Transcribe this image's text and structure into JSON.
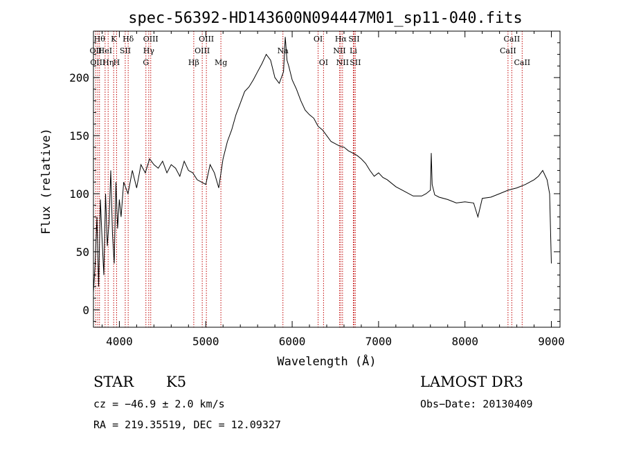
{
  "chart_data": {
    "type": "line",
    "title": "spec-56392-HD143600N094447M01_sp11-040.fits",
    "xlabel": "Wavelength (Å)",
    "ylabel": "Flux (relative)",
    "xlim": [
      3700,
      9100
    ],
    "ylim": [
      -15,
      240
    ],
    "x_ticks": [
      4000,
      5000,
      6000,
      7000,
      8000,
      9000
    ],
    "y_ticks": [
      0,
      50,
      100,
      150,
      200
    ],
    "series": [
      {
        "x": [
          3700,
          3720,
          3740,
          3760,
          3780,
          3800,
          3820,
          3840,
          3860,
          3880,
          3900,
          3920,
          3940,
          3960,
          3980,
          4000,
          4020,
          4050,
          4100,
          4150,
          4200,
          4250,
          4300,
          4350,
          4400,
          4450,
          4500,
          4550,
          4600,
          4650,
          4700,
          4750,
          4800,
          4850,
          4900,
          4950,
          5000,
          5050,
          5100,
          5150,
          5200,
          5250,
          5300,
          5350,
          5400,
          5450,
          5500,
          5550,
          5600,
          5650,
          5700,
          5750,
          5800,
          5850,
          5900,
          5920,
          5940,
          5960,
          6000,
          6050,
          6100,
          6150,
          6200,
          6250,
          6300,
          6350,
          6400,
          6450,
          6500,
          6550,
          6600,
          6650,
          6700,
          6750,
          6800,
          6850,
          6900,
          6950,
          7000,
          7050,
          7100,
          7200,
          7300,
          7400,
          7500,
          7550,
          7600,
          7610,
          7620,
          7650,
          7700,
          7800,
          7900,
          8000,
          8100,
          8150,
          8200,
          8300,
          8400,
          8500,
          8600,
          8700,
          8750,
          8800,
          8850,
          8900,
          8950,
          8980,
          9000
        ],
        "y": [
          15,
          40,
          80,
          20,
          95,
          60,
          30,
          100,
          55,
          75,
          120,
          65,
          40,
          110,
          70,
          95,
          80,
          110,
          100,
          120,
          105,
          125,
          118,
          130,
          125,
          122,
          128,
          118,
          125,
          122,
          115,
          128,
          120,
          118,
          112,
          110,
          108,
          125,
          118,
          105,
          130,
          145,
          155,
          168,
          178,
          188,
          192,
          198,
          205,
          212,
          220,
          215,
          200,
          195,
          205,
          235,
          215,
          210,
          198,
          190,
          180,
          172,
          168,
          165,
          158,
          155,
          150,
          145,
          143,
          141,
          140,
          137,
          135,
          133,
          130,
          126,
          120,
          115,
          118,
          114,
          112,
          106,
          102,
          98,
          98,
          100,
          103,
          135,
          108,
          99,
          97,
          95,
          92,
          93,
          92,
          80,
          96,
          97,
          100,
          103,
          105,
          108,
          110,
          112,
          115,
          120,
          112,
          100,
          40
        ]
      }
    ],
    "spectral_lines": [
      {
        "x": 3727,
        "label": "OII",
        "row": 1
      },
      {
        "x": 3750,
        "label": "OIII",
        "row": 2
      },
      {
        "x": 3770,
        "label": "Hθ",
        "row": 0
      },
      {
        "x": 3835,
        "label": "HeI",
        "row": 1
      },
      {
        "x": 3870,
        "label": "Hη",
        "row": 2
      },
      {
        "x": 3934,
        "label": "K",
        "row": 0
      },
      {
        "x": 3968,
        "label": "H",
        "row": 2
      },
      {
        "x": 4068,
        "label": "SII",
        "row": 1
      },
      {
        "x": 4102,
        "label": "Hδ",
        "row": 0
      },
      {
        "x": 4307,
        "label": "G",
        "row": 2
      },
      {
        "x": 4340,
        "label": "Hγ",
        "row": 1
      },
      {
        "x": 4363,
        "label": "OIII",
        "row": 0
      },
      {
        "x": 4861,
        "label": "Hβ",
        "row": 2
      },
      {
        "x": 4959,
        "label": "OIII",
        "row": 1
      },
      {
        "x": 5007,
        "label": "OIII",
        "row": 0
      },
      {
        "x": 5175,
        "label": "Mg",
        "row": 2
      },
      {
        "x": 5893,
        "label": "Na",
        "row": 1
      },
      {
        "x": 6300,
        "label": "OI",
        "row": 0
      },
      {
        "x": 6363,
        "label": "OI",
        "row": 2
      },
      {
        "x": 6548,
        "label": "NII",
        "row": 1
      },
      {
        "x": 6563,
        "label": "Hα",
        "row": 0
      },
      {
        "x": 6583,
        "label": "NII",
        "row": 2
      },
      {
        "x": 6708,
        "label": "Li",
        "row": 1
      },
      {
        "x": 6716,
        "label": "SII",
        "row": 0
      },
      {
        "x": 6731,
        "label": "SII",
        "row": 2
      },
      {
        "x": 8498,
        "label": "CaII",
        "row": 1
      },
      {
        "x": 8542,
        "label": "CaII",
        "row": 0
      },
      {
        "x": 8662,
        "label": "CaII",
        "row": 2
      }
    ],
    "line_color": "#000000",
    "marker_color": "#c00000"
  },
  "info": {
    "class": "STAR",
    "subclass": "K5",
    "survey": "LAMOST DR3",
    "cz": "cz = −46.9 ± 2.0 km/s",
    "obs_date": "Obs−Date: 20130409",
    "coords": "RA = 219.35519, DEC =  12.09327"
  }
}
